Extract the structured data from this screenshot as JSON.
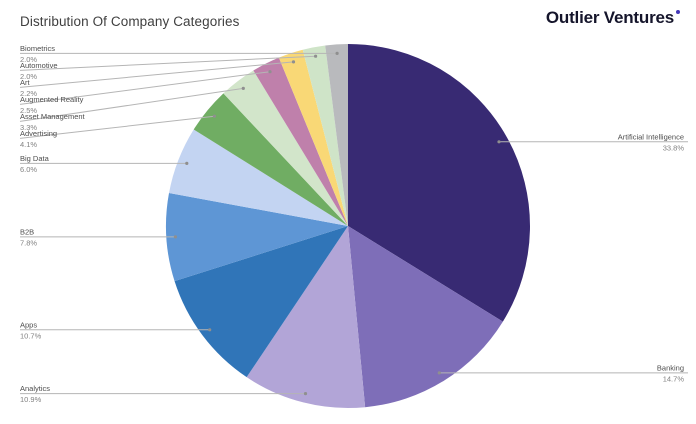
{
  "page": {
    "title": "Distribution Of Company Categories",
    "logo": {
      "text": "Outlier Ventures",
      "dot_color": "#4338b8"
    }
  },
  "chart_data": {
    "type": "pie",
    "title": "Distribution Of Company Categories",
    "legend_position": "outside-labels-with-leader-lines",
    "start_angle_deg": 0,
    "direction": "clockwise",
    "slices": [
      {
        "label": "Artificial Intelligence",
        "value": 33.8,
        "display": "33.8%",
        "color": "#382a73",
        "side": "right"
      },
      {
        "label": "Banking",
        "value": 14.7,
        "display": "14.7%",
        "color": "#7e6eb8",
        "side": "right"
      },
      {
        "label": "Analytics",
        "value": 10.9,
        "display": "10.9%",
        "color": "#b2a5d7",
        "side": "left"
      },
      {
        "label": "Apps",
        "value": 10.7,
        "display": "10.7%",
        "color": "#3075b8",
        "side": "left"
      },
      {
        "label": "B2B",
        "value": 7.8,
        "display": "7.8%",
        "color": "#5e96d5",
        "side": "left"
      },
      {
        "label": "Big Data",
        "value": 6.0,
        "display": "6.0%",
        "color": "#c3d4f2",
        "side": "left"
      },
      {
        "label": "Advertising",
        "value": 4.1,
        "display": "4.1%",
        "color": "#70ad63",
        "side": "left"
      },
      {
        "label": "Asset Management",
        "value": 3.3,
        "display": "3.3%",
        "color": "#d2e5ca",
        "side": "left"
      },
      {
        "label": "Augmented Reality",
        "value": 2.5,
        "display": "2.5%",
        "color": "#bf80ab",
        "side": "left"
      },
      {
        "label": "Art",
        "value": 2.2,
        "display": "2.2%",
        "color": "#f9d876",
        "side": "left"
      },
      {
        "label": "Automotive",
        "value": 2.0,
        "display": "2.0%",
        "color": "#cfe4c8",
        "side": "left"
      },
      {
        "label": "Biometrics",
        "value": 2.0,
        "display": "2.0%",
        "color": "#b9babd",
        "side": "left"
      }
    ],
    "colors_note": {
      "leader_line": "#b5b5b5",
      "anchor_dot": "#8f8f8f",
      "label_text": "#4d4d4d",
      "percent_text": "#828282"
    }
  }
}
